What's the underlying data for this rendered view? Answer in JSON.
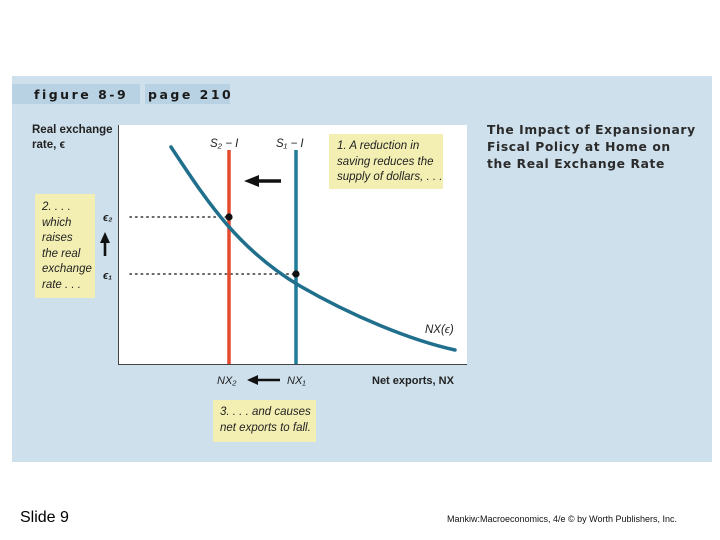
{
  "header": {
    "figure_label": "figure 8-9",
    "page_label": "page 210"
  },
  "title": [
    "The Impact of Expansionary",
    "Fiscal Policy at Home on",
    "the Real Exchange Rate"
  ],
  "axes": {
    "y_label": [
      "Real exchange",
      "rate, ϵ"
    ],
    "x_label": "Net exports, NX",
    "eps2": "ϵ₂",
    "eps1": "ϵ₁",
    "nx2": "NX₂",
    "nx1": "NX₁"
  },
  "curves": {
    "s2_label": "S₂ − I",
    "s1_label": "S₁ − I",
    "nx_label": "NX(ϵ)",
    "s2_color": "#e64a2e",
    "s1_color": "#1f7d9a",
    "nx_color": "#1f6f8d"
  },
  "notes": {
    "note1": [
      "1. A reduction in",
      "saving reduces the",
      "supply of dollars, . . ."
    ],
    "note2": [
      "2. . . .",
      "which",
      "raises",
      "the real",
      "exchange",
      "rate . . ."
    ],
    "note3": [
      "3. . . . and causes",
      "net exports to fall."
    ]
  },
  "footer": {
    "slide": "Slide 9",
    "credit": "Mankiw:Macroeconomics, 4/e © by Worth Publishers, Inc."
  },
  "colors": {
    "panel": "#cde0ec",
    "header_strip": "#b8d2e3",
    "note_bg": "#f3efb3"
  }
}
